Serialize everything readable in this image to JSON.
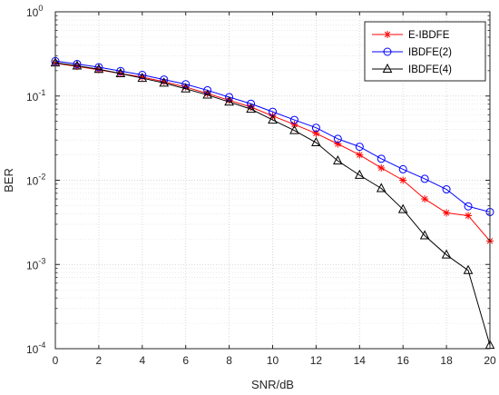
{
  "chart_data": {
    "type": "line",
    "xlabel": "SNR/dB",
    "ylabel": "BER",
    "x": [
      0,
      1,
      2,
      3,
      4,
      5,
      6,
      7,
      8,
      9,
      10,
      11,
      12,
      13,
      14,
      15,
      16,
      17,
      18,
      19,
      20
    ],
    "xlim": [
      0,
      20
    ],
    "ylim": [
      0.0001,
      1
    ],
    "yscale": "log",
    "xticks": [
      0,
      2,
      4,
      6,
      8,
      10,
      12,
      14,
      16,
      18,
      20
    ],
    "yticks": [
      {
        "value": 1,
        "base": "10",
        "exp": "0"
      },
      {
        "value": 0.1,
        "base": "10",
        "exp": "-1"
      },
      {
        "value": 0.01,
        "base": "10",
        "exp": "-2"
      },
      {
        "value": 0.001,
        "base": "10",
        "exp": "-3"
      },
      {
        "value": 0.0001,
        "base": "10",
        "exp": "-4"
      }
    ],
    "grid": true,
    "legend_position": "top-right",
    "series": [
      {
        "name": "E-IBDFE",
        "color": "#ff0000",
        "marker": "asterisk",
        "values": [
          0.245,
          0.225,
          0.205,
          0.185,
          0.168,
          0.148,
          0.128,
          0.107,
          0.089,
          0.074,
          0.058,
          0.046,
          0.036,
          0.027,
          0.02,
          0.014,
          0.01,
          0.006,
          0.0041,
          0.0038,
          0.0019
        ]
      },
      {
        "name": "IBDFE(2)",
        "color": "#0000ff",
        "marker": "circle",
        "values": [
          0.26,
          0.24,
          0.22,
          0.198,
          0.178,
          0.157,
          0.138,
          0.117,
          0.097,
          0.081,
          0.065,
          0.052,
          0.042,
          0.031,
          0.025,
          0.018,
          0.0135,
          0.0104,
          0.0078,
          0.0049,
          0.0042
        ]
      },
      {
        "name": "IBDFE(4)",
        "color": "#000000",
        "marker": "triangle",
        "values": [
          0.248,
          0.228,
          0.208,
          0.185,
          0.163,
          0.143,
          0.122,
          0.103,
          0.085,
          0.07,
          0.052,
          0.039,
          0.028,
          0.017,
          0.0115,
          0.008,
          0.0045,
          0.0022,
          0.0013,
          0.00085,
          0.00011
        ]
      }
    ]
  }
}
